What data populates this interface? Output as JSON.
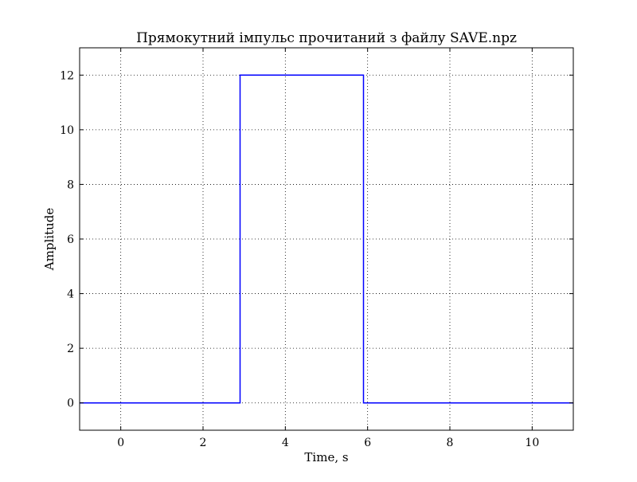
{
  "chart_data": {
    "type": "line",
    "title": "Прямокутний імпульс прочитаний з файлу SAVE.npz",
    "xlabel": "Time, s",
    "ylabel": "Amplitude",
    "xlim": [
      -1,
      11
    ],
    "ylim": [
      -1,
      13
    ],
    "xticks": [
      0,
      2,
      4,
      6,
      8,
      10
    ],
    "yticks": [
      0,
      2,
      4,
      6,
      8,
      10,
      12
    ],
    "xtick_labels": [
      "0",
      "2",
      "4",
      "6",
      "8",
      "10"
    ],
    "ytick_labels": [
      "0",
      "2",
      "4",
      "6",
      "8",
      "10",
      "12"
    ],
    "grid": true,
    "series": [
      {
        "color": "#0000ff",
        "x": [
          -1,
          2.9,
          2.9,
          5.9,
          5.9,
          11
        ],
        "y": [
          0,
          0,
          12,
          12,
          0,
          0
        ]
      }
    ]
  }
}
